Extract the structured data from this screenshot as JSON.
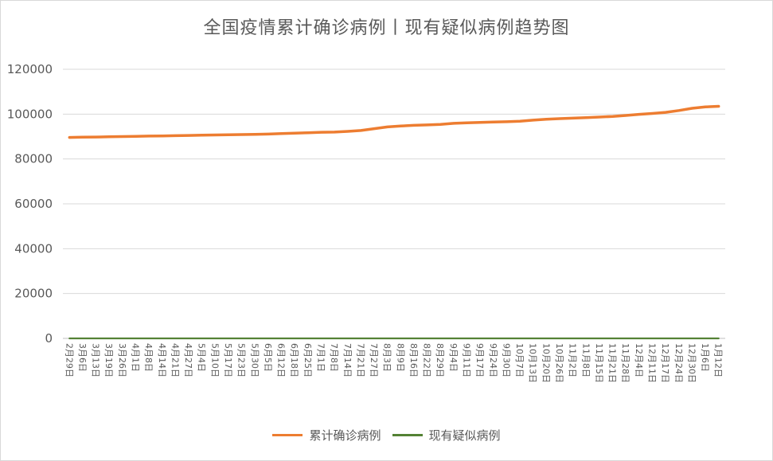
{
  "chart_data": {
    "type": "line",
    "title": "全国疫情累计确诊病例丨现有疑似病例趋势图",
    "xlabel": "",
    "ylabel": "",
    "ylim": [
      0,
      120000
    ],
    "yticks": [
      0,
      20000,
      40000,
      60000,
      80000,
      100000,
      120000
    ],
    "grid": true,
    "legend_position": "bottom",
    "x": [
      "2月29日",
      "3月6日",
      "3月13日",
      "3月19日",
      "3月26日",
      "4月1日",
      "4月8日",
      "4月14日",
      "4月21日",
      "4月27日",
      "5月4日",
      "5月10日",
      "5月17日",
      "5月23日",
      "5月30日",
      "6月5日",
      "6月12日",
      "6月18日",
      "6月25日",
      "7月1日",
      "7月8日",
      "7月14日",
      "7月21日",
      "7月27日",
      "8月3日",
      "8月9日",
      "8月16日",
      "8月22日",
      "8月29日",
      "9月4日",
      "9月11日",
      "9月17日",
      "9月24日",
      "9月30日",
      "10月7日",
      "10月13日",
      "10月20日",
      "10月26日",
      "11月2日",
      "11月8日",
      "11月15日",
      "11月21日",
      "11月28日",
      "12月4日",
      "12月11日",
      "12月17日",
      "12月24日",
      "12月30日",
      "1月6日",
      "1月12日"
    ],
    "series": [
      {
        "name": "累计确诊病例",
        "color": "#ed7d31",
        "values": [
          89600,
          89700,
          89800,
          89900,
          90000,
          90100,
          90200,
          90300,
          90400,
          90500,
          90600,
          90700,
          90800,
          90900,
          91000,
          91100,
          91300,
          91500,
          91700,
          91900,
          92000,
          92300,
          92700,
          93500,
          94300,
          94700,
          95000,
          95200,
          95400,
          95900,
          96100,
          96300,
          96500,
          96600,
          96800,
          97300,
          97700,
          98000,
          98200,
          98400,
          98700,
          99000,
          99400,
          99900,
          100300,
          100800,
          101600,
          102600,
          103200,
          103500
        ]
      },
      {
        "name": "现有疑似病例",
        "color": "#548235",
        "values": [
          3,
          3,
          2,
          2,
          2,
          2,
          2,
          1,
          1,
          1,
          1,
          1,
          1,
          1,
          1,
          1,
          3,
          4,
          4,
          3,
          3,
          2,
          2,
          2,
          2,
          2,
          2,
          2,
          2,
          2,
          2,
          2,
          2,
          1,
          1,
          1,
          1,
          1,
          1,
          1,
          1,
          1,
          1,
          1,
          1,
          1,
          1,
          1,
          1,
          1
        ]
      }
    ]
  }
}
